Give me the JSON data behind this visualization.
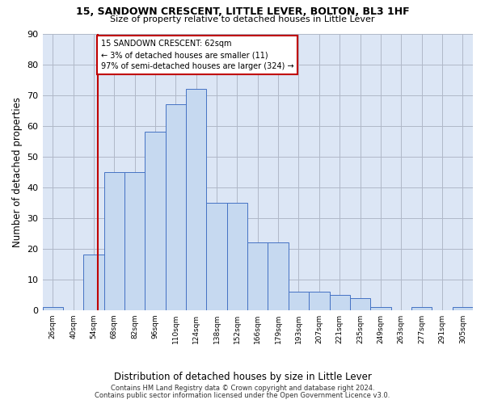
{
  "title_line1": "15, SANDOWN CRESCENT, LITTLE LEVER, BOLTON, BL3 1HF",
  "title_line2": "Size of property relative to detached houses in Little Lever",
  "xlabel": "Distribution of detached houses by size in Little Lever",
  "ylabel": "Number of detached properties",
  "bar_values": [
    1,
    0,
    18,
    45,
    45,
    58,
    67,
    72,
    35,
    35,
    22,
    22,
    6,
    6,
    5,
    4,
    1,
    0,
    1,
    0,
    1
  ],
  "tick_labels": [
    "26sqm",
    "40sqm",
    "54sqm",
    "68sqm",
    "82sqm",
    "96sqm",
    "110sqm",
    "124sqm",
    "138sqm",
    "152sqm",
    "166sqm",
    "179sqm",
    "193sqm",
    "207sqm",
    "221sqm",
    "235sqm",
    "249sqm",
    "263sqm",
    "277sqm",
    "291sqm",
    "305sqm"
  ],
  "bar_color": "#c6d9f0",
  "bar_edge_color": "#4472c4",
  "vline_position": 2.7,
  "vline_color": "#c00000",
  "annotation_text": "15 SANDOWN CRESCENT: 62sqm\n← 3% of detached houses are smaller (11)\n97% of semi-detached houses are larger (324) →",
  "annotation_box_color": "#c00000",
  "ylim": [
    0,
    90
  ],
  "yticks": [
    0,
    10,
    20,
    30,
    40,
    50,
    60,
    70,
    80,
    90
  ],
  "footer_line1": "Contains HM Land Registry data © Crown copyright and database right 2024.",
  "footer_line2": "Contains public sector information licensed under the Open Government Licence v3.0.",
  "bg_color": "#ffffff",
  "plot_bg_color": "#dce6f5",
  "grid_color": "#b0b8c8"
}
